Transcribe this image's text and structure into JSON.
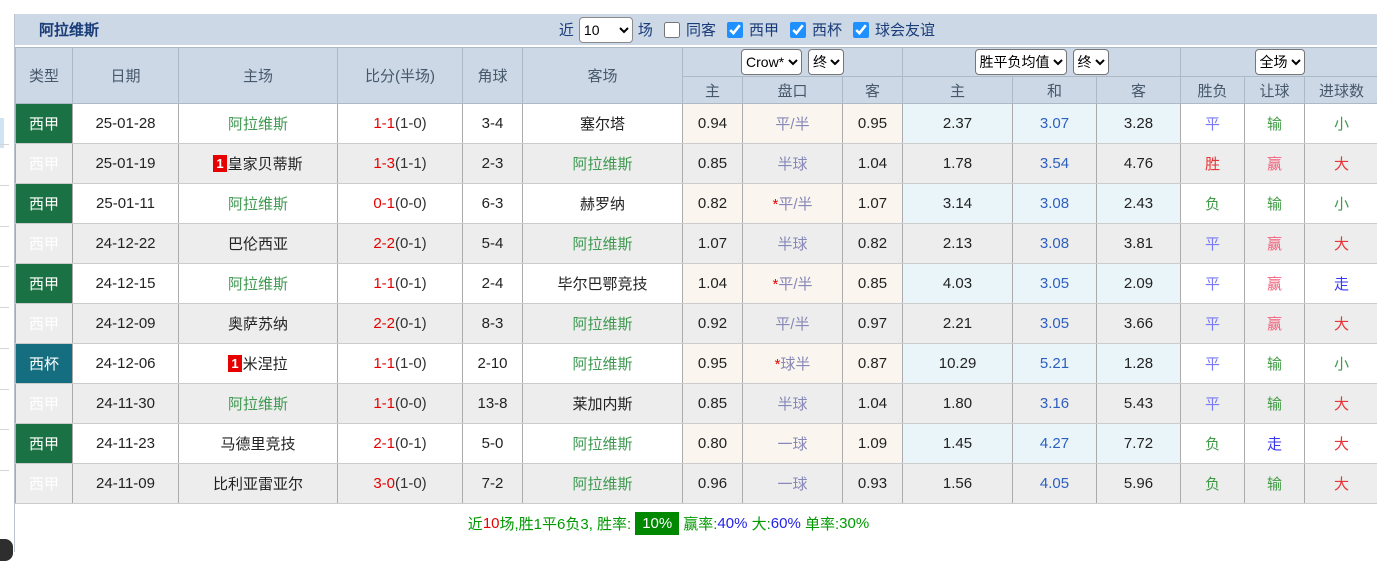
{
  "title": "阿拉维斯",
  "topbar": {
    "recent_label": "近",
    "recent_value": "10",
    "games_label": "场",
    "same_opponent_label": "同客",
    "same_opponent_checked": false,
    "filters": [
      {
        "label": "西甲",
        "checked": true
      },
      {
        "label": "西杯",
        "checked": true
      },
      {
        "label": "球会友谊",
        "checked": true
      }
    ]
  },
  "header": {
    "col_type": "类型",
    "col_date": "日期",
    "col_home": "主场",
    "col_score": "比分(半场)",
    "col_corner": "角球",
    "col_away": "客场",
    "odds_company_select": "Crow*",
    "odds_state_select": "终",
    "avg_select": "胜平负均值",
    "avg_state_select": "终",
    "scope_select": "全场",
    "sub": {
      "home": "主",
      "pan": "盘口",
      "away": "客",
      "avg_home": "主",
      "avg_draw": "和",
      "avg_away": "客",
      "wdl": "胜负",
      "handicap": "让球",
      "goals": "进球数"
    }
  },
  "rows": [
    {
      "type": "西甲",
      "type_kind": "liga",
      "date": "25-01-28",
      "home": "阿拉维斯",
      "home_self": true,
      "home_badge": "",
      "score_ft": "1-1",
      "score_ht": "(1-0)",
      "corner": "3-4",
      "away": "塞尔塔",
      "away_self": false,
      "odds_home": "0.94",
      "pan_star": "",
      "pan": "平/半",
      "odds_away": "0.95",
      "avg_home": "2.37",
      "avg_draw": "3.07",
      "avg_away": "3.28",
      "wdl": "平",
      "wdl_c": "blue",
      "rq": "输",
      "rq_c": "green",
      "jq": "小",
      "jq_c": "green"
    },
    {
      "type": "西甲",
      "type_kind": "liga",
      "date": "25-01-19",
      "home": "皇家贝蒂斯",
      "home_self": false,
      "home_badge": "1",
      "score_ft": "1-3",
      "score_ht": "(1-1)",
      "corner": "2-3",
      "away": "阿拉维斯",
      "away_self": true,
      "odds_home": "0.85",
      "pan_star": "",
      "pan": "半球",
      "odds_away": "1.04",
      "avg_home": "1.78",
      "avg_draw": "3.54",
      "avg_away": "4.76",
      "wdl": "胜",
      "wdl_c": "red",
      "rq": "赢",
      "rq_c": "pink",
      "jq": "大",
      "jq_c": "red"
    },
    {
      "type": "西甲",
      "type_kind": "liga",
      "date": "25-01-11",
      "home": "阿拉维斯",
      "home_self": true,
      "home_badge": "",
      "score_ft": "0-1",
      "score_ht": "(0-0)",
      "corner": "6-3",
      "away": "赫罗纳",
      "away_self": false,
      "odds_home": "0.82",
      "pan_star": "*",
      "pan": "平/半",
      "odds_away": "1.07",
      "avg_home": "3.14",
      "avg_draw": "3.08",
      "avg_away": "2.43",
      "wdl": "负",
      "wdl_c": "green",
      "rq": "输",
      "rq_c": "green",
      "jq": "小",
      "jq_c": "green"
    },
    {
      "type": "西甲",
      "type_kind": "liga",
      "date": "24-12-22",
      "home": "巴伦西亚",
      "home_self": false,
      "home_badge": "",
      "score_ft": "2-2",
      "score_ht": "(0-1)",
      "corner": "5-4",
      "away": "阿拉维斯",
      "away_self": true,
      "odds_home": "1.07",
      "pan_star": "",
      "pan": "半球",
      "odds_away": "0.82",
      "avg_home": "2.13",
      "avg_draw": "3.08",
      "avg_away": "3.81",
      "wdl": "平",
      "wdl_c": "blue",
      "rq": "赢",
      "rq_c": "pink",
      "jq": "大",
      "jq_c": "red"
    },
    {
      "type": "西甲",
      "type_kind": "liga",
      "date": "24-12-15",
      "home": "阿拉维斯",
      "home_self": true,
      "home_badge": "",
      "score_ft": "1-1",
      "score_ht": "(0-1)",
      "corner": "2-4",
      "away": "毕尔巴鄂竞技",
      "away_self": false,
      "odds_home": "1.04",
      "pan_star": "*",
      "pan": "平/半",
      "odds_away": "0.85",
      "avg_home": "4.03",
      "avg_draw": "3.05",
      "avg_away": "2.09",
      "wdl": "平",
      "wdl_c": "blue",
      "rq": "赢",
      "rq_c": "pink",
      "jq": "走",
      "jq_c": "dblue"
    },
    {
      "type": "西甲",
      "type_kind": "liga",
      "date": "24-12-09",
      "home": "奥萨苏纳",
      "home_self": false,
      "home_badge": "",
      "score_ft": "2-2",
      "score_ht": "(0-1)",
      "corner": "8-3",
      "away": "阿拉维斯",
      "away_self": true,
      "odds_home": "0.92",
      "pan_star": "",
      "pan": "平/半",
      "odds_away": "0.97",
      "avg_home": "2.21",
      "avg_draw": "3.05",
      "avg_away": "3.66",
      "wdl": "平",
      "wdl_c": "blue",
      "rq": "赢",
      "rq_c": "pink",
      "jq": "大",
      "jq_c": "red"
    },
    {
      "type": "西杯",
      "type_kind": "copa",
      "date": "24-12-06",
      "home": "米涅拉",
      "home_self": false,
      "home_badge": "1",
      "score_ft": "1-1",
      "score_ht": "(1-0)",
      "corner": "2-10",
      "away": "阿拉维斯",
      "away_self": true,
      "odds_home": "0.95",
      "pan_star": "*",
      "pan": "球半",
      "odds_away": "0.87",
      "avg_home": "10.29",
      "avg_draw": "5.21",
      "avg_away": "1.28",
      "wdl": "平",
      "wdl_c": "blue",
      "rq": "输",
      "rq_c": "green",
      "jq": "小",
      "jq_c": "green"
    },
    {
      "type": "西甲",
      "type_kind": "liga",
      "date": "24-11-30",
      "home": "阿拉维斯",
      "home_self": true,
      "home_badge": "",
      "score_ft": "1-1",
      "score_ht": "(0-0)",
      "corner": "13-8",
      "away": "莱加内斯",
      "away_self": false,
      "odds_home": "0.85",
      "pan_star": "",
      "pan": "半球",
      "odds_away": "1.04",
      "avg_home": "1.80",
      "avg_draw": "3.16",
      "avg_away": "5.43",
      "wdl": "平",
      "wdl_c": "blue",
      "rq": "输",
      "rq_c": "green",
      "jq": "大",
      "jq_c": "red"
    },
    {
      "type": "西甲",
      "type_kind": "liga",
      "date": "24-11-23",
      "home": "马德里竞技",
      "home_self": false,
      "home_badge": "",
      "score_ft": "2-1",
      "score_ht": "(0-1)",
      "corner": "5-0",
      "away": "阿拉维斯",
      "away_self": true,
      "odds_home": "0.80",
      "pan_star": "",
      "pan": "一球",
      "odds_away": "1.09",
      "avg_home": "1.45",
      "avg_draw": "4.27",
      "avg_away": "7.72",
      "wdl": "负",
      "wdl_c": "green",
      "rq": "走",
      "rq_c": "dblue",
      "jq": "大",
      "jq_c": "red"
    },
    {
      "type": "西甲",
      "type_kind": "liga",
      "date": "24-11-09",
      "home": "比利亚雷亚尔",
      "home_self": false,
      "home_badge": "",
      "score_ft": "3-0",
      "score_ht": "(1-0)",
      "corner": "7-2",
      "away": "阿拉维斯",
      "away_self": true,
      "odds_home": "0.96",
      "pan_star": "",
      "pan": "一球",
      "odds_away": "0.93",
      "avg_home": "1.56",
      "avg_draw": "4.05",
      "avg_away": "5.96",
      "wdl": "负",
      "wdl_c": "green",
      "rq": "输",
      "rq_c": "green",
      "jq": "大",
      "jq_c": "red"
    }
  ],
  "footer": {
    "parts": [
      {
        "t": "近",
        "c": "green"
      },
      {
        "t": "10",
        "c": "red"
      },
      {
        "t": "场,胜1平6负3, 胜率:",
        "c": "green"
      },
      {
        "t": "10%",
        "c": "badge",
        "badge": true
      },
      {
        "t": "赢率:",
        "c": "green"
      },
      {
        "t": "40%",
        "c": "blue"
      },
      {
        "t": " 大:",
        "c": "green"
      },
      {
        "t": "60%",
        "c": "blue"
      },
      {
        "t": " 单率:",
        "c": "green"
      },
      {
        "t": "30%",
        "c": "green"
      }
    ]
  },
  "colors": {
    "header_bg": "#ccd8e6",
    "navy": "#1a3c78",
    "checked_blue": "#1e90ff",
    "liga_badge": "#1a7144",
    "copa_badge": "#156d80",
    "self_team": "#3d9950",
    "score_red": "#e80000",
    "avg_blue": "#2d5fbf",
    "draw_blue": "#7878f8",
    "go_blue": "#3737f0",
    "lose_green": "#3f9a44",
    "win_red": "#e83333",
    "win_pink": "#f0607a",
    "footer_green": "#009a00",
    "footer_red": "#e80000",
    "footer_blue": "#2222e8",
    "footer_badge_bg": "#008800"
  }
}
